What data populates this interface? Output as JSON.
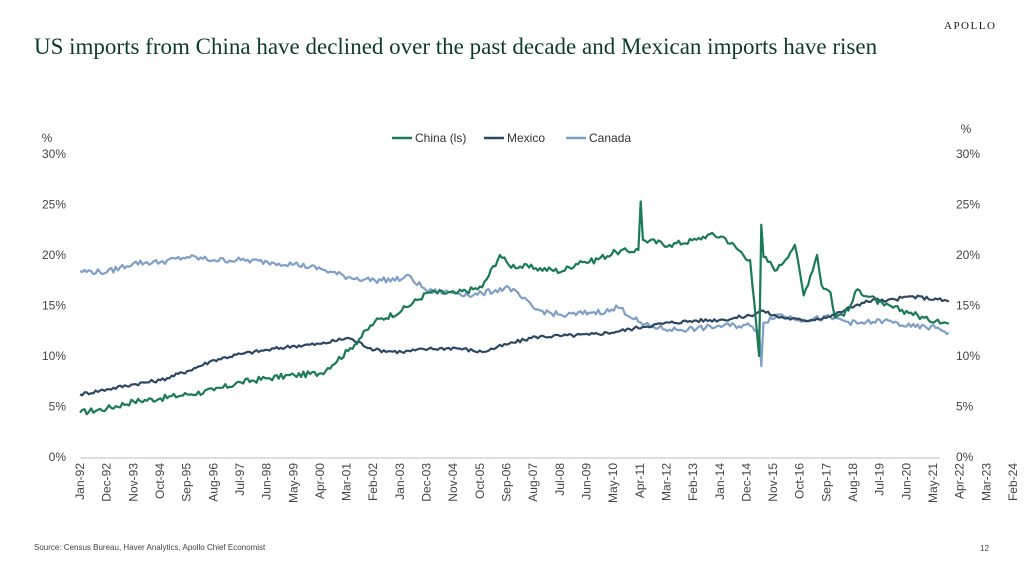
{
  "header": {
    "logo": "APOLLO",
    "title": "US imports from China have declined over the past decade and Mexican imports have risen"
  },
  "footer": {
    "source": "Source: Census Bureau, Haver Analytics, Apollo Chief Economist",
    "page": "12"
  },
  "colors": {
    "china": "#1b7a57",
    "mexico": "#2e4763",
    "canada": "#7f9fc6"
  },
  "chart_data": {
    "type": "line",
    "title": "US imports from China have declined over the past decade and Mexican imports have risen",
    "ylabel_left": "%",
    "ylabel_right": "%",
    "ylim": [
      0,
      30
    ],
    "yticks": [
      "0%",
      "5%",
      "10%",
      "15%",
      "20%",
      "25%",
      "30%"
    ],
    "legend_position": "top-center",
    "grid": false,
    "x_tick_labels": [
      "Jan-92",
      "Dec-92",
      "Nov-93",
      "Oct-94",
      "Sep-95",
      "Aug-96",
      "Jul-97",
      "Jun-98",
      "May-99",
      "Apr-00",
      "Mar-01",
      "Feb-02",
      "Jan-03",
      "Dec-03",
      "Nov-04",
      "Oct-05",
      "Sep-06",
      "Aug-07",
      "Jul-08",
      "Jun-09",
      "May-10",
      "Apr-11",
      "Mar-12",
      "Feb-13",
      "Jan-14",
      "Dec-14",
      "Nov-15",
      "Oct-16",
      "Sep-17",
      "Aug-18",
      "Jul-19",
      "Jun-20",
      "May-21",
      "Apr-22",
      "Mar-23",
      "Feb-24"
    ],
    "series": [
      {
        "name": "China (ls)",
        "x": [
          "1992-01",
          "1993-01",
          "1994-01",
          "1995-01",
          "1996-01",
          "1997-01",
          "1998-01",
          "1999-01",
          "2000-01",
          "2001-01",
          "2002-01",
          "2003-01",
          "2004-01",
          "2005-01",
          "2006-01",
          "2007-01",
          "2007-09",
          "2008-01",
          "2009-01",
          "2010-01",
          "2010-09",
          "2011-01",
          "2012-01",
          "2012-11",
          "2012-12",
          "2013-01",
          "2014-01",
          "2015-01",
          "2015-06",
          "2016-01",
          "2017-01",
          "2017-05",
          "2017-06",
          "2017-07",
          "2018-01",
          "2018-09",
          "2019-01",
          "2019-07",
          "2019-09",
          "2020-01",
          "2020-03",
          "2020-09",
          "2021-01",
          "2022-01",
          "2023-01",
          "2023-09",
          "2024-01",
          "2024-06"
        ],
        "values": [
          4.4,
          4.8,
          5.5,
          5.8,
          6.2,
          6.6,
          7.4,
          7.8,
          8.1,
          8.3,
          10.5,
          13.4,
          14.5,
          16.3,
          16.2,
          16.8,
          20.0,
          19.0,
          18.7,
          18.4,
          19.4,
          19.3,
          20.3,
          20.5,
          25.3,
          21.5,
          21.0,
          21.5,
          22.0,
          21.8,
          19.5,
          10.0,
          23.0,
          19.8,
          18.5,
          21.0,
          16.0,
          20.0,
          17.0,
          16.3,
          13.8,
          14.5,
          16.6,
          15.0,
          14.3,
          13.5,
          13.6,
          13.2
        ]
      },
      {
        "name": "Mexico",
        "x": [
          "1992-01",
          "1993-01",
          "1994-01",
          "1995-01",
          "1996-01",
          "1997-01",
          "1998-01",
          "1999-01",
          "2000-01",
          "2001-01",
          "2002-01",
          "2003-01",
          "2004-01",
          "2005-01",
          "2006-01",
          "2007-01",
          "2008-01",
          "2009-01",
          "2010-01",
          "2011-01",
          "2012-01",
          "2013-01",
          "2014-01",
          "2015-01",
          "2016-01",
          "2017-01",
          "2017-06",
          "2018-01",
          "2019-01",
          "2020-01",
          "2021-01",
          "2021-09",
          "2022-01",
          "2023-01",
          "2024-01",
          "2024-06"
        ],
        "values": [
          6.2,
          6.7,
          7.2,
          7.6,
          8.5,
          9.6,
          10.2,
          10.6,
          11.0,
          11.2,
          11.8,
          10.6,
          10.4,
          10.7,
          10.8,
          10.4,
          11.2,
          11.9,
          12.0,
          12.1,
          12.4,
          12.9,
          13.3,
          13.5,
          13.6,
          14.0,
          14.5,
          13.9,
          13.5,
          13.9,
          15.1,
          15.6,
          15.4,
          15.9,
          15.6,
          15.4
        ]
      },
      {
        "name": "Canada",
        "x": [
          "1992-01",
          "1993-01",
          "1994-01",
          "1995-01",
          "1996-01",
          "1997-01",
          "1998-01",
          "1999-01",
          "2000-01",
          "2001-01",
          "2002-01",
          "2003-01",
          "2004-01",
          "2004-03",
          "2005-01",
          "2006-01",
          "2006-09",
          "2007-01",
          "2008-01",
          "2009-01",
          "2010-01",
          "2011-01",
          "2011-12",
          "2012-01",
          "2013-01",
          "2014-01",
          "2015-01",
          "2016-01",
          "2017-01",
          "2017-05",
          "2017-06",
          "2017-07",
          "2018-01",
          "2019-01",
          "2020-01",
          "2021-01",
          "2022-01",
          "2023-01",
          "2024-01",
          "2024-06"
        ],
        "values": [
          18.4,
          18.3,
          19.2,
          19.3,
          19.8,
          19.5,
          19.5,
          19.3,
          19.1,
          18.6,
          17.8,
          17.5,
          17.6,
          18.0,
          16.4,
          16.3,
          16.0,
          16.2,
          16.8,
          14.6,
          14.0,
          14.3,
          14.5,
          15.0,
          13.1,
          12.6,
          12.7,
          13.0,
          13.0,
          12.5,
          9.0,
          13.3,
          14.1,
          13.6,
          13.8,
          13.2,
          13.5,
          12.9,
          12.8,
          12.3
        ]
      }
    ]
  }
}
